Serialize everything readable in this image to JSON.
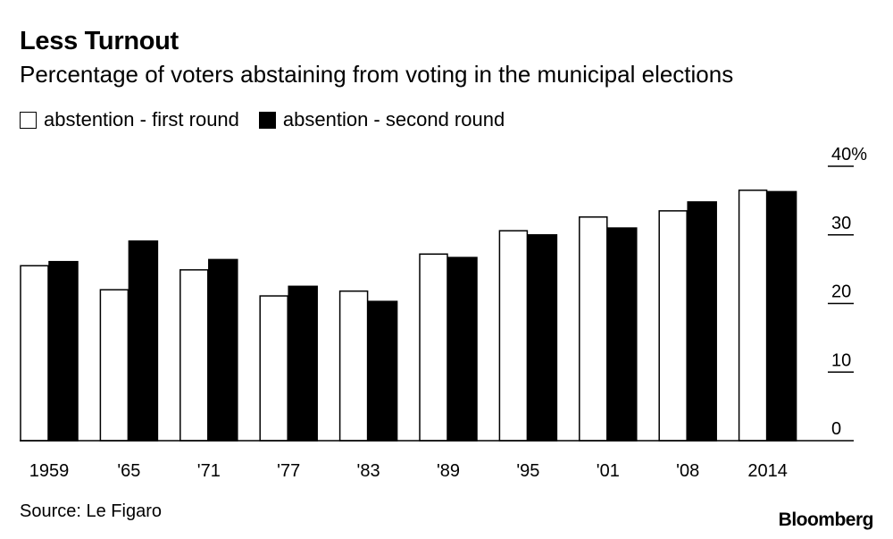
{
  "chart_data": {
    "type": "bar",
    "title": "Less Turnout",
    "subtitle": "Percentage of voters abstaining from voting in the municipal elections",
    "categories": [
      "1959",
      "'65",
      "'71",
      "'77",
      "'83",
      "'89",
      "'95",
      "'01",
      "'08",
      "2014"
    ],
    "series": [
      {
        "name": "abstention - first round",
        "color": "#ffffff",
        "values": [
          25.5,
          22,
          24.9,
          21.1,
          21.8,
          27.2,
          30.6,
          32.6,
          33.5,
          36.5
        ]
      },
      {
        "name": "absention - second round",
        "color": "#000000",
        "values": [
          26.1,
          29.1,
          26.4,
          22.5,
          20.3,
          26.7,
          30,
          31,
          34.8,
          36.3
        ]
      }
    ],
    "ylim": [
      0,
      40
    ],
    "yticks": [
      0,
      10,
      20,
      30,
      40
    ],
    "ytick_labels": [
      "0",
      "10",
      "20",
      "30",
      "40%"
    ],
    "y_axis_position": "right",
    "grid": false,
    "legend_position": "top-left"
  },
  "source": "Source: Le Figaro",
  "brand": "Bloomberg"
}
